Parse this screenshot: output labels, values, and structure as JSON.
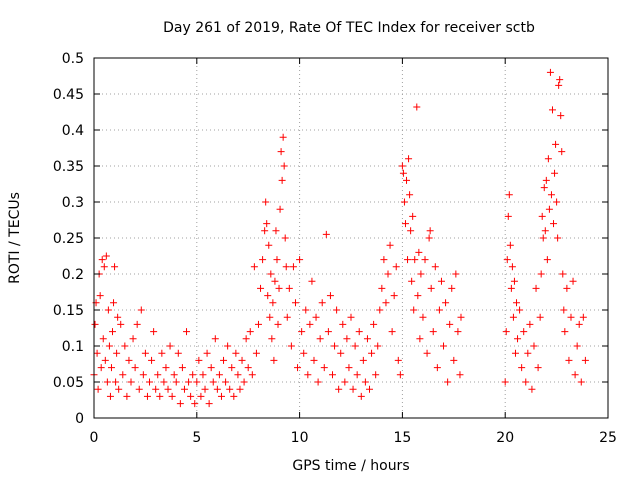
{
  "chart_data": {
    "type": "scatter",
    "title": "Day 261 of 2019, Rate Of TEC Index for receiver sctb",
    "xlabel": "GPS time / hours",
    "ylabel": "ROTI / TECUs",
    "xlim": [
      0,
      25
    ],
    "ylim": [
      0,
      0.5
    ],
    "x_ticks": [
      0,
      5,
      10,
      15,
      20,
      25
    ],
    "x_tick_labels": [
      "0",
      "5",
      "10",
      "15",
      "20",
      "25"
    ],
    "y_ticks": [
      0,
      0.05,
      0.1,
      0.15,
      0.2,
      0.25,
      0.3,
      0.35,
      0.4,
      0.45,
      0.5
    ],
    "y_tick_labels": [
      "0",
      "0.05",
      "0.1",
      "0.15",
      "0.2",
      "0.25",
      "0.3",
      "0.35",
      "0.4",
      "0.45",
      "0.5"
    ],
    "grid": true,
    "marker": "plus",
    "series": [
      {
        "name": "ROTI",
        "color": "#ff0000",
        "points": [
          [
            0.0,
            0.06
          ],
          [
            0.05,
            0.13
          ],
          [
            0.1,
            0.16
          ],
          [
            0.15,
            0.09
          ],
          [
            0.2,
            0.04
          ],
          [
            0.25,
            0.2
          ],
          [
            0.3,
            0.17
          ],
          [
            0.35,
            0.07
          ],
          [
            0.4,
            0.22
          ],
          [
            0.45,
            0.11
          ],
          [
            0.5,
            0.21
          ],
          [
            0.55,
            0.08
          ],
          [
            0.6,
            0.225
          ],
          [
            0.65,
            0.05
          ],
          [
            0.7,
            0.15
          ],
          [
            0.75,
            0.1
          ],
          [
            0.8,
            0.03
          ],
          [
            0.85,
            0.07
          ],
          [
            0.9,
            0.12
          ],
          [
            0.95,
            0.16
          ],
          [
            1.0,
            0.21
          ],
          [
            1.05,
            0.05
          ],
          [
            1.1,
            0.09
          ],
          [
            1.15,
            0.14
          ],
          [
            1.2,
            0.04
          ],
          [
            1.3,
            0.13
          ],
          [
            1.4,
            0.06
          ],
          [
            1.5,
            0.1
          ],
          [
            1.6,
            0.03
          ],
          [
            1.7,
            0.08
          ],
          [
            1.8,
            0.05
          ],
          [
            1.9,
            0.11
          ],
          [
            2.0,
            0.07
          ],
          [
            2.1,
            0.13
          ],
          [
            2.2,
            0.04
          ],
          [
            2.3,
            0.15
          ],
          [
            2.4,
            0.06
          ],
          [
            2.5,
            0.09
          ],
          [
            2.6,
            0.03
          ],
          [
            2.7,
            0.05
          ],
          [
            2.8,
            0.08
          ],
          [
            2.9,
            0.12
          ],
          [
            3.0,
            0.04
          ],
          [
            3.1,
            0.06
          ],
          [
            3.2,
            0.03
          ],
          [
            3.3,
            0.09
          ],
          [
            3.4,
            0.05
          ],
          [
            3.5,
            0.07
          ],
          [
            3.6,
            0.04
          ],
          [
            3.7,
            0.1
          ],
          [
            3.8,
            0.03
          ],
          [
            3.9,
            0.06
          ],
          [
            4.0,
            0.05
          ],
          [
            4.1,
            0.09
          ],
          [
            4.2,
            0.02
          ],
          [
            4.3,
            0.07
          ],
          [
            4.4,
            0.04
          ],
          [
            4.5,
            0.12
          ],
          [
            4.6,
            0.05
          ],
          [
            4.7,
            0.03
          ],
          [
            4.8,
            0.06
          ],
          [
            4.9,
            0.02
          ],
          [
            5.0,
            0.05
          ],
          [
            5.1,
            0.08
          ],
          [
            5.2,
            0.03
          ],
          [
            5.3,
            0.06
          ],
          [
            5.4,
            0.04
          ],
          [
            5.5,
            0.09
          ],
          [
            5.6,
            0.02
          ],
          [
            5.7,
            0.07
          ],
          [
            5.8,
            0.05
          ],
          [
            5.9,
            0.11
          ],
          [
            6.0,
            0.04
          ],
          [
            6.1,
            0.06
          ],
          [
            6.2,
            0.03
          ],
          [
            6.3,
            0.08
          ],
          [
            6.4,
            0.05
          ],
          [
            6.5,
            0.1
          ],
          [
            6.6,
            0.04
          ],
          [
            6.7,
            0.07
          ],
          [
            6.8,
            0.03
          ],
          [
            6.9,
            0.09
          ],
          [
            7.0,
            0.06
          ],
          [
            7.1,
            0.04
          ],
          [
            7.2,
            0.08
          ],
          [
            7.3,
            0.05
          ],
          [
            7.4,
            0.11
          ],
          [
            7.5,
            0.07
          ],
          [
            7.6,
            0.12
          ],
          [
            7.7,
            0.06
          ],
          [
            7.8,
            0.21
          ],
          [
            7.9,
            0.09
          ],
          [
            8.0,
            0.13
          ],
          [
            8.1,
            0.18
          ],
          [
            8.2,
            0.22
          ],
          [
            8.3,
            0.26
          ],
          [
            8.35,
            0.3
          ],
          [
            8.4,
            0.27
          ],
          [
            8.45,
            0.17
          ],
          [
            8.5,
            0.24
          ],
          [
            8.55,
            0.14
          ],
          [
            8.6,
            0.2
          ],
          [
            8.65,
            0.11
          ],
          [
            8.7,
            0.16
          ],
          [
            8.75,
            0.08
          ],
          [
            8.8,
            0.19
          ],
          [
            8.85,
            0.26
          ],
          [
            8.9,
            0.22
          ],
          [
            8.95,
            0.13
          ],
          [
            9.0,
            0.18
          ],
          [
            9.05,
            0.29
          ],
          [
            9.1,
            0.37
          ],
          [
            9.15,
            0.33
          ],
          [
            9.2,
            0.39
          ],
          [
            9.25,
            0.35
          ],
          [
            9.3,
            0.25
          ],
          [
            9.35,
            0.21
          ],
          [
            9.4,
            0.14
          ],
          [
            9.5,
            0.18
          ],
          [
            9.6,
            0.1
          ],
          [
            9.7,
            0.21
          ],
          [
            9.8,
            0.16
          ],
          [
            9.9,
            0.07
          ],
          [
            10.0,
            0.22
          ],
          [
            10.1,
            0.12
          ],
          [
            10.2,
            0.09
          ],
          [
            10.3,
            0.15
          ],
          [
            10.4,
            0.06
          ],
          [
            10.5,
            0.13
          ],
          [
            10.6,
            0.19
          ],
          [
            10.7,
            0.08
          ],
          [
            10.8,
            0.14
          ],
          [
            10.9,
            0.05
          ],
          [
            11.0,
            0.11
          ],
          [
            11.1,
            0.16
          ],
          [
            11.2,
            0.07
          ],
          [
            11.3,
            0.255
          ],
          [
            11.4,
            0.12
          ],
          [
            11.5,
            0.17
          ],
          [
            11.6,
            0.06
          ],
          [
            11.7,
            0.1
          ],
          [
            11.8,
            0.15
          ],
          [
            11.9,
            0.04
          ],
          [
            12.0,
            0.09
          ],
          [
            12.1,
            0.13
          ],
          [
            12.2,
            0.05
          ],
          [
            12.3,
            0.11
          ],
          [
            12.4,
            0.07
          ],
          [
            12.5,
            0.14
          ],
          [
            12.6,
            0.04
          ],
          [
            12.7,
            0.1
          ],
          [
            12.8,
            0.06
          ],
          [
            12.9,
            0.12
          ],
          [
            13.0,
            0.03
          ],
          [
            13.1,
            0.08
          ],
          [
            13.2,
            0.05
          ],
          [
            13.3,
            0.11
          ],
          [
            13.4,
            0.04
          ],
          [
            13.5,
            0.09
          ],
          [
            13.6,
            0.13
          ],
          [
            13.7,
            0.06
          ],
          [
            13.8,
            0.1
          ],
          [
            13.9,
            0.15
          ],
          [
            14.0,
            0.18
          ],
          [
            14.1,
            0.22
          ],
          [
            14.2,
            0.16
          ],
          [
            14.3,
            0.2
          ],
          [
            14.4,
            0.24
          ],
          [
            14.5,
            0.12
          ],
          [
            14.6,
            0.17
          ],
          [
            14.7,
            0.21
          ],
          [
            14.8,
            0.08
          ],
          [
            14.9,
            0.06
          ],
          [
            15.0,
            0.35
          ],
          [
            15.05,
            0.34
          ],
          [
            15.1,
            0.3
          ],
          [
            15.15,
            0.27
          ],
          [
            15.2,
            0.33
          ],
          [
            15.25,
            0.22
          ],
          [
            15.3,
            0.36
          ],
          [
            15.35,
            0.31
          ],
          [
            15.4,
            0.26
          ],
          [
            15.45,
            0.19
          ],
          [
            15.5,
            0.28
          ],
          [
            15.55,
            0.15
          ],
          [
            15.6,
            0.22
          ],
          [
            15.7,
            0.432
          ],
          [
            15.75,
            0.17
          ],
          [
            15.8,
            0.23
          ],
          [
            15.85,
            0.11
          ],
          [
            15.9,
            0.2
          ],
          [
            16.0,
            0.14
          ],
          [
            16.1,
            0.22
          ],
          [
            16.2,
            0.09
          ],
          [
            16.3,
            0.25
          ],
          [
            16.35,
            0.26
          ],
          [
            16.4,
            0.18
          ],
          [
            16.5,
            0.12
          ],
          [
            16.6,
            0.21
          ],
          [
            16.7,
            0.07
          ],
          [
            16.8,
            0.15
          ],
          [
            16.9,
            0.19
          ],
          [
            17.0,
            0.1
          ],
          [
            17.1,
            0.16
          ],
          [
            17.2,
            0.05
          ],
          [
            17.3,
            0.13
          ],
          [
            17.4,
            0.18
          ],
          [
            17.5,
            0.08
          ],
          [
            17.6,
            0.2
          ],
          [
            17.7,
            0.12
          ],
          [
            17.8,
            0.06
          ],
          [
            17.85,
            0.14
          ],
          [
            20.0,
            0.05
          ],
          [
            20.05,
            0.12
          ],
          [
            20.1,
            0.22
          ],
          [
            20.15,
            0.28
          ],
          [
            20.2,
            0.31
          ],
          [
            20.25,
            0.24
          ],
          [
            20.3,
            0.18
          ],
          [
            20.35,
            0.21
          ],
          [
            20.4,
            0.14
          ],
          [
            20.45,
            0.19
          ],
          [
            20.5,
            0.09
          ],
          [
            20.55,
            0.16
          ],
          [
            20.6,
            0.11
          ],
          [
            20.7,
            0.15
          ],
          [
            20.8,
            0.07
          ],
          [
            20.9,
            0.12
          ],
          [
            21.0,
            0.05
          ],
          [
            21.1,
            0.09
          ],
          [
            21.2,
            0.13
          ],
          [
            21.3,
            0.04
          ],
          [
            21.4,
            0.1
          ],
          [
            21.5,
            0.18
          ],
          [
            21.6,
            0.07
          ],
          [
            21.7,
            0.14
          ],
          [
            21.75,
            0.2
          ],
          [
            21.8,
            0.28
          ],
          [
            21.85,
            0.25
          ],
          [
            21.9,
            0.32
          ],
          [
            21.95,
            0.26
          ],
          [
            22.0,
            0.33
          ],
          [
            22.05,
            0.22
          ],
          [
            22.1,
            0.36
          ],
          [
            22.15,
            0.29
          ],
          [
            22.2,
            0.48
          ],
          [
            22.25,
            0.31
          ],
          [
            22.3,
            0.428
          ],
          [
            22.35,
            0.27
          ],
          [
            22.4,
            0.34
          ],
          [
            22.45,
            0.38
          ],
          [
            22.5,
            0.3
          ],
          [
            22.55,
            0.25
          ],
          [
            22.6,
            0.462
          ],
          [
            22.65,
            0.47
          ],
          [
            22.7,
            0.42
          ],
          [
            22.75,
            0.37
          ],
          [
            22.8,
            0.2
          ],
          [
            22.85,
            0.15
          ],
          [
            22.9,
            0.12
          ],
          [
            23.0,
            0.18
          ],
          [
            23.1,
            0.08
          ],
          [
            23.2,
            0.14
          ],
          [
            23.3,
            0.19
          ],
          [
            23.4,
            0.06
          ],
          [
            23.5,
            0.1
          ],
          [
            23.6,
            0.13
          ],
          [
            23.7,
            0.05
          ],
          [
            23.8,
            0.14
          ],
          [
            23.9,
            0.08
          ]
        ]
      }
    ]
  }
}
